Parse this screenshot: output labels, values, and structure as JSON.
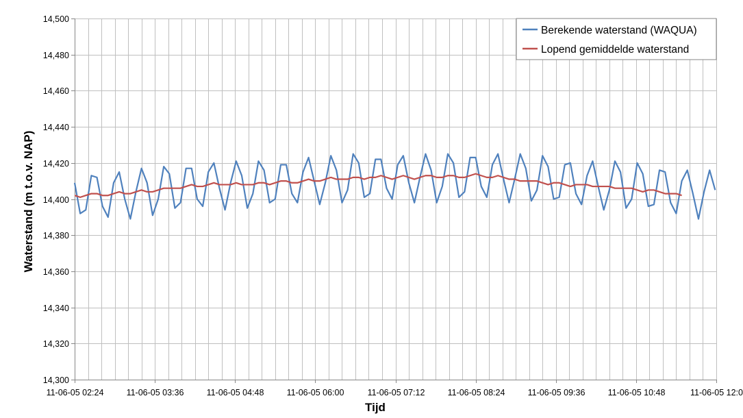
{
  "chart_data": {
    "type": "line",
    "title": "",
    "xlabel": "Tijd",
    "ylabel": "Waterstand (m t.o.v. NAP)",
    "ylim": [
      14.3,
      14.5
    ],
    "y_ticks": [
      14.3,
      14.32,
      14.34,
      14.36,
      14.38,
      14.4,
      14.42,
      14.44,
      14.46,
      14.48,
      14.5
    ],
    "y_tick_labels": [
      "14,300",
      "14,320",
      "14,340",
      "14,360",
      "14,380",
      "14,400",
      "14,420",
      "14,440",
      "14,460",
      "14,480",
      "14,500"
    ],
    "x_range_minutes": [
      144,
      720
    ],
    "x_tick_labels": [
      "11-06-05 02:24",
      "11-06-05 03:36",
      "11-06-05 04:48",
      "11-06-05 06:00",
      "11-06-05 07:12",
      "11-06-05 08:24",
      "11-06-05 09:36",
      "11-06-05 10:48",
      "11-06-05 12:0"
    ],
    "x_minor_step_minutes": 12,
    "x_major_step_minutes": 72,
    "grid": true,
    "legend_position": "top-right",
    "series": [
      {
        "name": "Berekende waterstand (WAQUA)",
        "color": "#4f81bd",
        "x_start_minutes": 144,
        "x_step_minutes": 5,
        "values": [
          14.409,
          14.392,
          14.394,
          14.413,
          14.412,
          14.396,
          14.39,
          14.409,
          14.415,
          14.4,
          14.389,
          14.404,
          14.417,
          14.409,
          14.391,
          14.4,
          14.418,
          14.414,
          14.395,
          14.398,
          14.417,
          14.417,
          14.4,
          14.396,
          14.415,
          14.42,
          14.406,
          14.394,
          14.409,
          14.421,
          14.413,
          14.395,
          14.403,
          14.421,
          14.416,
          14.398,
          14.4,
          14.419,
          14.419,
          14.403,
          14.398,
          14.415,
          14.423,
          14.41,
          14.397,
          14.409,
          14.424,
          14.416,
          14.398,
          14.405,
          14.425,
          14.42,
          14.401,
          14.403,
          14.422,
          14.422,
          14.406,
          14.4,
          14.419,
          14.424,
          14.409,
          14.398,
          14.412,
          14.425,
          14.416,
          14.398,
          14.407,
          14.425,
          14.42,
          14.401,
          14.404,
          14.423,
          14.423,
          14.407,
          14.401,
          14.419,
          14.425,
          14.411,
          14.398,
          14.411,
          14.425,
          14.417,
          14.399,
          14.405,
          14.424,
          14.418,
          14.4,
          14.401,
          14.419,
          14.42,
          14.403,
          14.397,
          14.413,
          14.421,
          14.407,
          14.394,
          14.405,
          14.421,
          14.415,
          14.395,
          14.4,
          14.42,
          14.414,
          14.396,
          14.397,
          14.416,
          14.415,
          14.398,
          14.392,
          14.41,
          14.416,
          14.403,
          14.389,
          14.404,
          14.416,
          14.405
        ]
      },
      {
        "name": "Lopend gemiddelde waterstand",
        "color": "#c0504d",
        "x_start_minutes": 144,
        "x_step_minutes": 5,
        "values": [
          14.402,
          14.401,
          14.402,
          14.403,
          14.403,
          14.402,
          14.402,
          14.403,
          14.404,
          14.403,
          14.403,
          14.404,
          14.405,
          14.404,
          14.404,
          14.405,
          14.406,
          14.406,
          14.406,
          14.406,
          14.407,
          14.408,
          14.407,
          14.407,
          14.408,
          14.409,
          14.408,
          14.408,
          14.408,
          14.409,
          14.408,
          14.408,
          14.408,
          14.409,
          14.409,
          14.408,
          14.409,
          14.41,
          14.41,
          14.409,
          14.409,
          14.41,
          14.411,
          14.41,
          14.41,
          14.411,
          14.412,
          14.411,
          14.411,
          14.411,
          14.412,
          14.412,
          14.411,
          14.412,
          14.412,
          14.413,
          14.412,
          14.411,
          14.412,
          14.413,
          14.412,
          14.411,
          14.412,
          14.413,
          14.413,
          14.412,
          14.412,
          14.413,
          14.413,
          14.412,
          14.412,
          14.413,
          14.414,
          14.413,
          14.412,
          14.412,
          14.413,
          14.412,
          14.411,
          14.411,
          14.41,
          14.41,
          14.41,
          14.41,
          14.409,
          14.408,
          14.409,
          14.409,
          14.408,
          14.407,
          14.408,
          14.408,
          14.408,
          14.407,
          14.407,
          14.407,
          14.407,
          14.406,
          14.406,
          14.406,
          14.406,
          14.405,
          14.404,
          14.405,
          14.405,
          14.404,
          14.403,
          14.403,
          14.403,
          14.402
        ]
      }
    ]
  },
  "colors": {
    "grid": "#bfbfbf",
    "axis": "#868686",
    "text": "#000000"
  }
}
